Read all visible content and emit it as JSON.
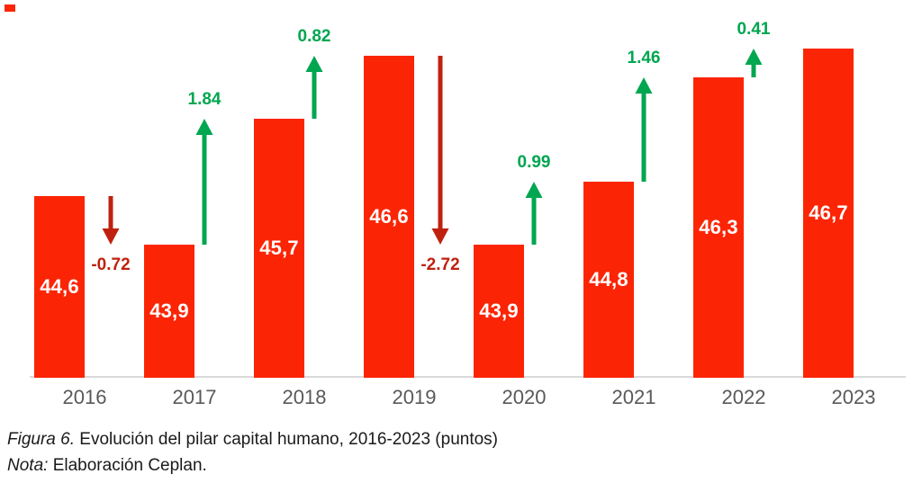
{
  "colors": {
    "bar_red": "#FB2505",
    "negative_dark_red": "#C0210F",
    "positive_green": "#00A650",
    "axis_line_gray": "#D9D9D9",
    "year_label_gray": "#595959",
    "value_label_white": "#FFFFFF",
    "caption_black": "#1A1A1A"
  },
  "chart_data": {
    "type": "bar",
    "title": "Evolución del pilar capital humano, 2016-2023 (puntos)",
    "categories": [
      "2016",
      "2017",
      "2018",
      "2019",
      "2020",
      "2021",
      "2022",
      "2023"
    ],
    "values": [
      44.6,
      43.9,
      45.7,
      46.6,
      43.9,
      44.8,
      46.3,
      46.7
    ],
    "bar_value_labels": [
      "44,6",
      "43,9",
      "45,7",
      "46,6",
      "43,9",
      "44,8",
      "46,3",
      "46,7"
    ],
    "year_over_year_changes": [
      {
        "from": "2016",
        "to": "2017",
        "label": "-0.72",
        "value": -0.72,
        "direction": "down"
      },
      {
        "from": "2017",
        "to": "2018",
        "label": "1.84",
        "value": 1.84,
        "direction": "up"
      },
      {
        "from": "2018",
        "to": "2019",
        "label": "0.82",
        "value": 0.82,
        "direction": "up"
      },
      {
        "from": "2019",
        "to": "2020",
        "label": "-2.72",
        "value": -2.72,
        "direction": "down"
      },
      {
        "from": "2020",
        "to": "2021",
        "label": "0.99",
        "value": 0.99,
        "direction": "up"
      },
      {
        "from": "2021",
        "to": "2022",
        "label": "1.46",
        "value": 1.46,
        "direction": "up"
      },
      {
        "from": "2022",
        "to": "2023",
        "label": "0.41",
        "value": 0.41,
        "direction": "up"
      }
    ],
    "xlabel": "",
    "ylabel": "",
    "ylim": [
      42,
      47.4
    ],
    "grid": false,
    "legend": false
  },
  "caption": {
    "figure_label": "Figura 6.",
    "figure_text": "Evolución del pilar capital humano, 2016-2023 (puntos)",
    "note_label": "Nota:",
    "note_text": "Elaboración Ceplan."
  }
}
